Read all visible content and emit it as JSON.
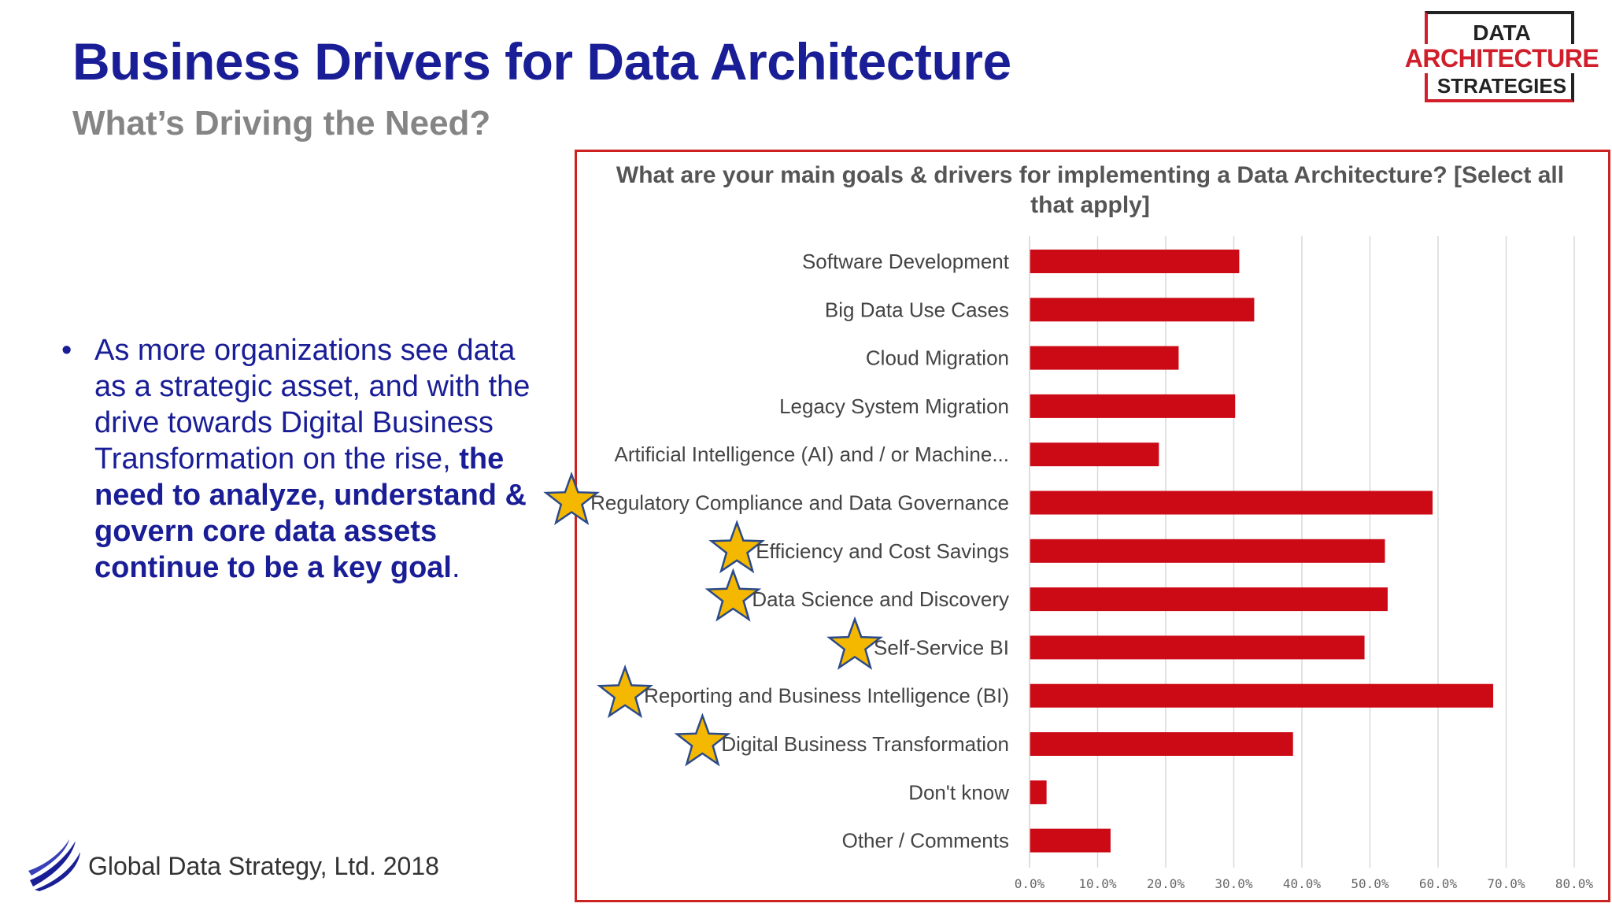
{
  "header": {
    "title": "Business Drivers for Data Architecture",
    "subtitle": "What’s Driving the Need?"
  },
  "logo": {
    "line1": "DATA",
    "line2": "ARCHITECTURE",
    "line3": "STRATEGIES"
  },
  "bullet": {
    "marker": "•",
    "text_plain": "As more organizations see data as a strategic asset, and with the drive towards Digital Business Transformation on the rise, ",
    "text_bold": "the need to analyze, understand & govern core data assets continue to be a key goal",
    "text_end": "."
  },
  "footer": {
    "text": "Global Data Strategy, Ltd. 2018"
  },
  "colors": {
    "title": "#1a1e96",
    "bar": "#cc0a16",
    "star_fill": "#f5b800",
    "star_stroke": "#2b4a8a",
    "frame": "#cc2222"
  },
  "chart_data": {
    "type": "bar",
    "orientation": "horizontal",
    "title": "What are your main goals & drivers for implementing  a Data Architecture?  [Select all that apply]",
    "categories": [
      "Software Development",
      "Big Data Use Cases",
      "Cloud Migration",
      "Legacy System Migration",
      "Artificial Intelligence (AI) and / or Machine...",
      "Regulatory Compliance and Data Governance",
      "Efficiency and Cost Savings",
      "Data Science and Discovery",
      "Self-Service BI",
      "Reporting and Business Intelligence (BI)",
      "Digital Business Transformation",
      "Don't know",
      "Other / Comments"
    ],
    "values": [
      30.8,
      33.0,
      21.9,
      30.2,
      19.0,
      59.2,
      52.2,
      52.6,
      49.2,
      68.1,
      38.7,
      2.5,
      11.9
    ],
    "starred": [
      false,
      false,
      false,
      false,
      false,
      true,
      true,
      true,
      true,
      true,
      true,
      false,
      false
    ],
    "xlim": [
      0,
      80
    ],
    "xticks": [
      "0.0%",
      "10.0%",
      "20.0%",
      "30.0%",
      "40.0%",
      "50.0%",
      "60.0%",
      "70.0%",
      "80.0%"
    ],
    "grid": true,
    "legend": "none"
  }
}
